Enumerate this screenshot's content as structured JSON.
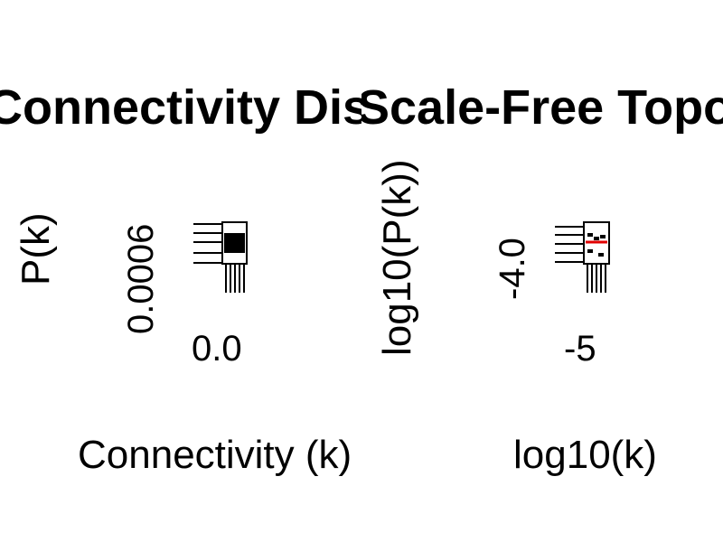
{
  "chart_data": [
    {
      "type": "scatter",
      "title": "Connectivity Distribution",
      "xlabel": "Connectivity (k)",
      "ylabel": "P(k)",
      "x_ticks": [
        "0.0"
      ],
      "y_ticks": [
        "0.0006"
      ],
      "colors": {
        "axis": "#000000",
        "marker": "#000000"
      }
    },
    {
      "type": "scatter",
      "title": "Scale-Free Topology",
      "xlabel": "log10(k)",
      "ylabel": "log10(P(k))",
      "x_ticks": [
        "-5"
      ],
      "y_ticks": [
        "-4.0"
      ],
      "colors": {
        "axis": "#000000",
        "marker": "#000000",
        "fit_line": "#e00000"
      }
    }
  ]
}
